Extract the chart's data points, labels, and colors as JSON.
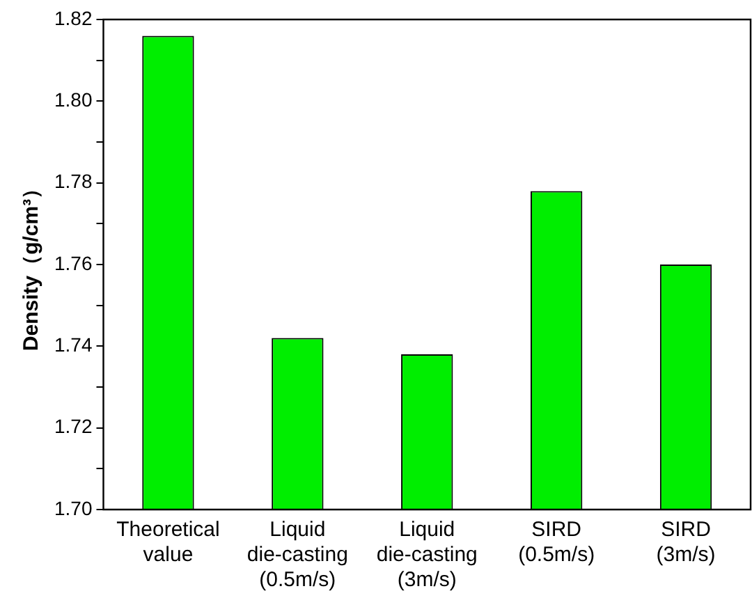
{
  "chart_data": {
    "type": "bar",
    "ylabel": "Density（g/cm³）",
    "categories": [
      "Theoretical\nvalue",
      "Liquid\ndie-casting\n(0.5m/s)",
      "Liquid\ndie-casting\n(3m/s)",
      "SIRD\n(0.5m/s)",
      "SIRD\n(3m/s)"
    ],
    "values": [
      1.816,
      1.742,
      1.738,
      1.778,
      1.76
    ],
    "color": "#00ee00",
    "ylim": [
      1.7,
      1.82
    ],
    "yticks": [
      {
        "value": 1.7,
        "label": "1.70"
      },
      {
        "value": 1.71,
        "label": null
      },
      {
        "value": 1.72,
        "label": "1.72"
      },
      {
        "value": 1.73,
        "label": null
      },
      {
        "value": 1.74,
        "label": "1.74"
      },
      {
        "value": 1.75,
        "label": null
      },
      {
        "value": 1.76,
        "label": "1.76"
      },
      {
        "value": 1.77,
        "label": null
      },
      {
        "value": 1.78,
        "label": "1.78"
      },
      {
        "value": 1.79,
        "label": null
      },
      {
        "value": 1.8,
        "label": "1.80"
      },
      {
        "value": 1.81,
        "label": null
      },
      {
        "value": 1.82,
        "label": "1.82"
      }
    ],
    "grid": false,
    "legend": false
  }
}
